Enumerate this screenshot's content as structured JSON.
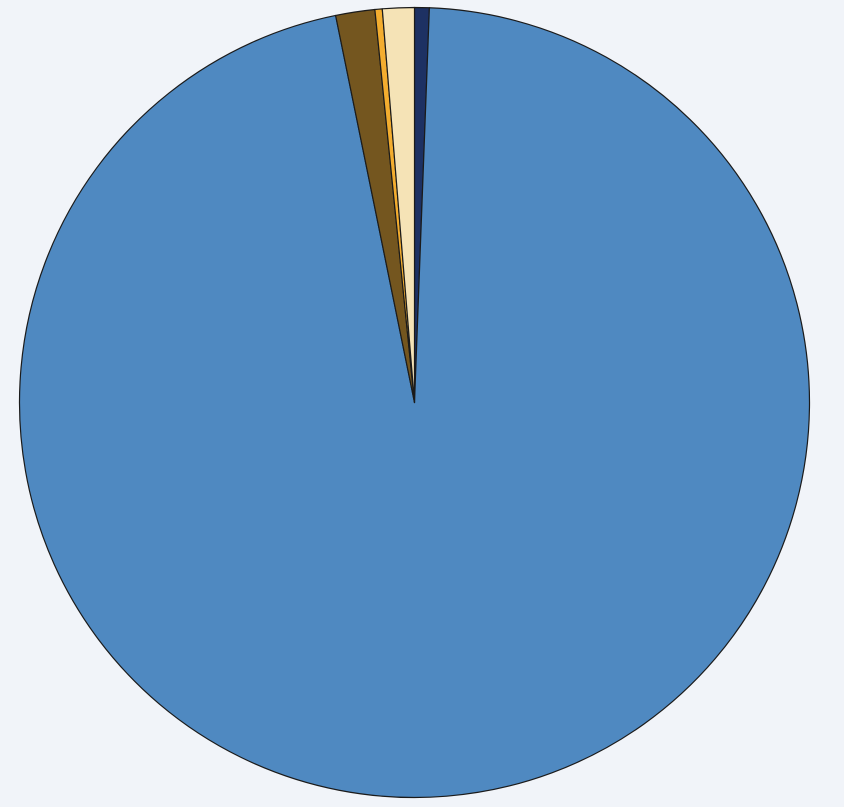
{
  "chart_data": {
    "type": "pie",
    "title": "",
    "start_angle": "top",
    "direction": "clockwise",
    "legend": "none",
    "slices": [
      {
        "value": 96.2,
        "color": "#4f89c1"
      },
      {
        "value": 1.6,
        "color": "#74561f"
      },
      {
        "value": 0.3,
        "color": "#f3ad2f"
      },
      {
        "value": 1.3,
        "color": "#f5e3b6"
      },
      {
        "value": 0.6,
        "color": "#1d3163"
      }
    ]
  }
}
